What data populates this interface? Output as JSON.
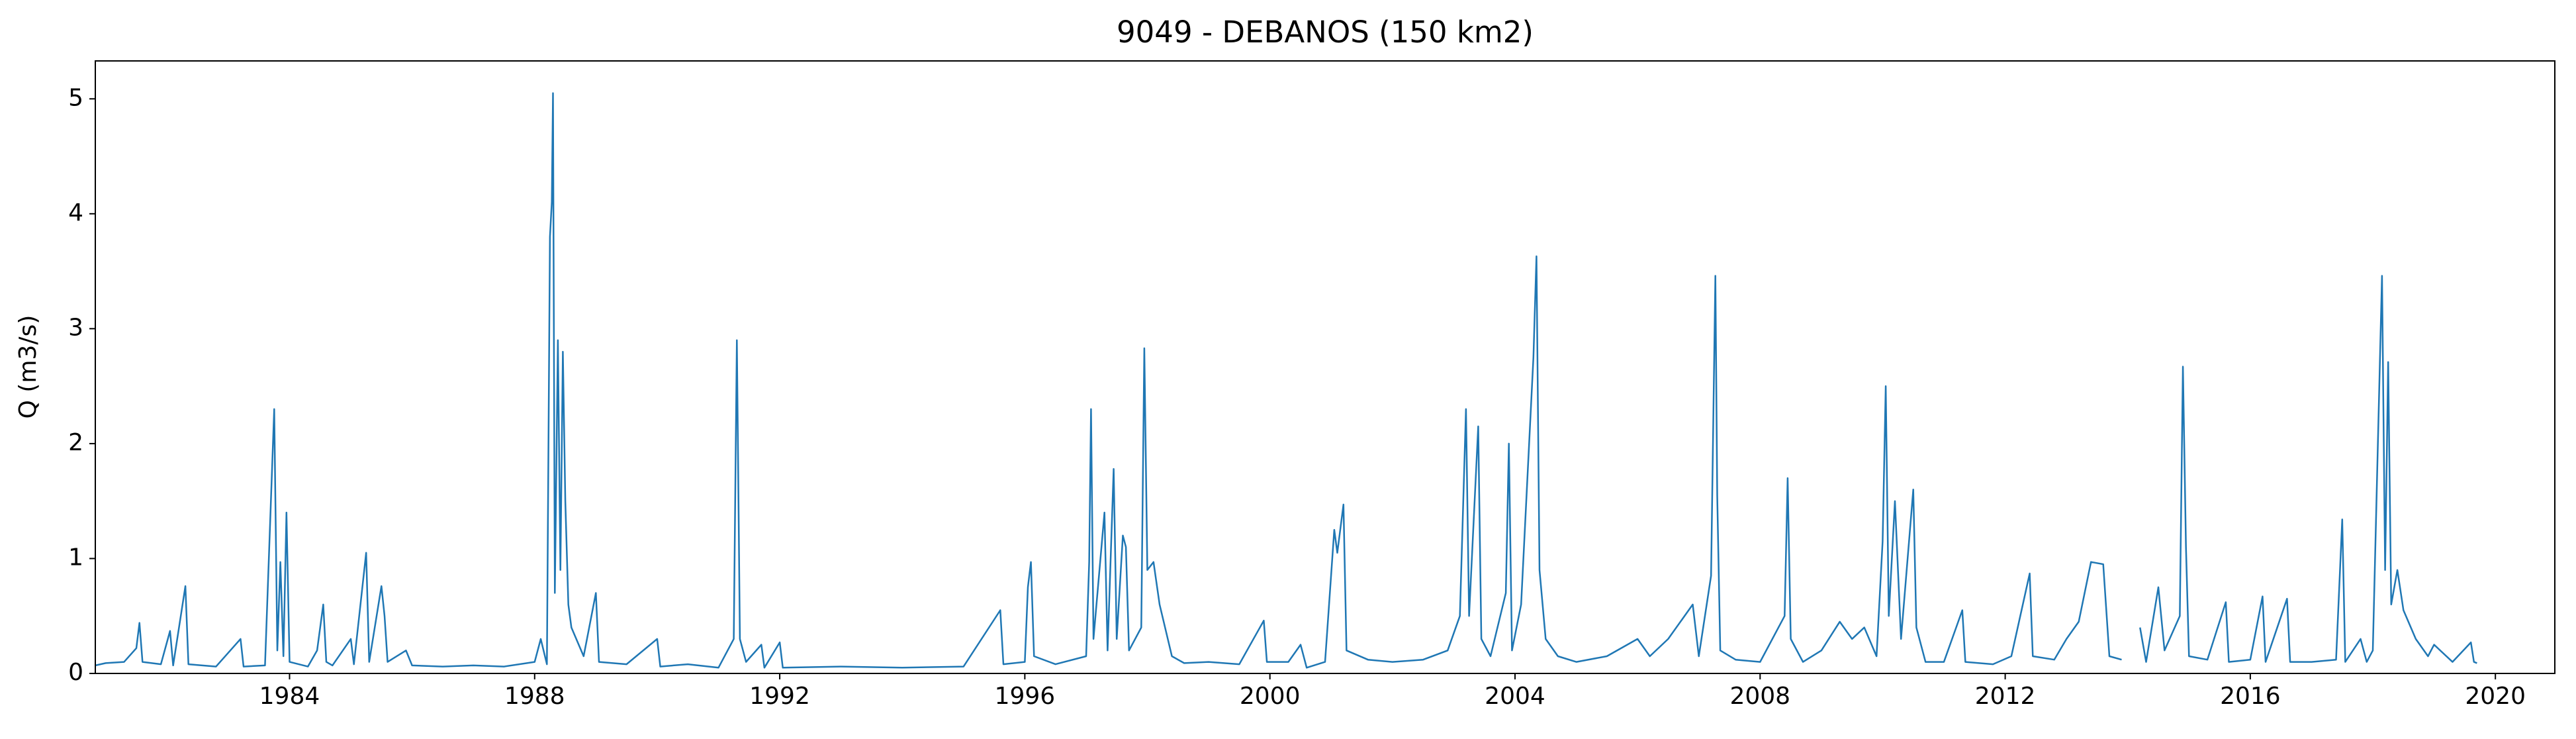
{
  "chart_data": {
    "type": "line",
    "title": "9049 - DEBANOS (150 km2)",
    "y_label": "Q (m3/s)",
    "x": [
      1980.83,
      1981.0,
      1981.3,
      1981.5,
      1981.55,
      1981.6,
      1981.9,
      1982.05,
      1982.1,
      1982.3,
      1982.35,
      1982.8,
      1983.2,
      1983.25,
      1983.6,
      1983.75,
      1983.8,
      1983.85,
      1983.9,
      1983.95,
      1984.0,
      1984.3,
      1984.45,
      1984.55,
      1984.6,
      1984.7,
      1985.0,
      1985.05,
      1985.25,
      1985.3,
      1985.5,
      1985.55,
      1985.6,
      1985.9,
      1986.0,
      1986.5,
      1987.0,
      1987.5,
      1988.0,
      1988.1,
      1988.2,
      1988.25,
      1988.28,
      1988.3,
      1988.33,
      1988.38,
      1988.42,
      1988.46,
      1988.5,
      1988.55,
      1988.6,
      1988.8,
      1989.0,
      1989.05,
      1989.5,
      1990.0,
      1990.05,
      1990.5,
      1991.0,
      1991.25,
      1991.3,
      1991.35,
      1991.45,
      1991.7,
      1991.75,
      1992.0,
      1992.05,
      1993.0,
      1994.0,
      1995.0,
      1995.6,
      1995.65,
      1996.0,
      1996.05,
      1996.1,
      1996.15,
      1996.5,
      1997.0,
      1997.05,
      1997.08,
      1997.12,
      1997.3,
      1997.35,
      1997.45,
      1997.5,
      1997.6,
      1997.65,
      1997.7,
      1997.9,
      1997.95,
      1998.0,
      1998.1,
      1998.2,
      1998.4,
      1998.6,
      1999.0,
      1999.5,
      1999.9,
      1999.95,
      2000.3,
      2000.5,
      2000.6,
      2000.9,
      2001.05,
      2001.1,
      2001.2,
      2001.25,
      2001.6,
      2002.0,
      2002.5,
      2002.9,
      2003.1,
      2003.2,
      2003.25,
      2003.4,
      2003.45,
      2003.6,
      2003.85,
      2003.9,
      2003.95,
      2004.1,
      2004.3,
      2004.35,
      2004.4,
      2004.5,
      2004.7,
      2005.0,
      2005.5,
      2006.0,
      2006.2,
      2006.5,
      2006.9,
      2007.0,
      2007.2,
      2007.27,
      2007.3,
      2007.35,
      2007.6,
      2008.0,
      2008.4,
      2008.45,
      2008.5,
      2008.7,
      2009.0,
      2009.3,
      2009.5,
      2009.7,
      2009.9,
      2010.0,
      2010.05,
      2010.1,
      2010.2,
      2010.3,
      2010.5,
      2010.55,
      2010.7,
      2011.0,
      2011.3,
      2011.35,
      2011.8,
      2012.1,
      2012.4,
      2012.45,
      2012.8,
      2013.0,
      2013.2,
      2013.4,
      2013.6,
      2013.7,
      2013.9,
      2014.0,
      2014.2,
      2014.3,
      2014.5,
      2014.6,
      2014.85,
      2014.9,
      2014.95,
      2015.0,
      2015.3,
      2015.6,
      2015.65,
      2016.0,
      2016.2,
      2016.25,
      2016.6,
      2016.65,
      2017.0,
      2017.4,
      2017.5,
      2017.55,
      2017.8,
      2017.9,
      2018.0,
      2018.15,
      2018.2,
      2018.25,
      2018.3,
      2018.4,
      2018.5,
      2018.7,
      2018.9,
      2019.0,
      2019.3,
      2019.6,
      2019.65,
      2019.7
    ],
    "series": [
      {
        "color": "#1f77b4",
        "values": [
          0.07,
          0.09,
          0.1,
          0.22,
          0.44,
          0.1,
          0.08,
          0.37,
          0.07,
          0.76,
          0.08,
          0.06,
          0.3,
          0.06,
          0.07,
          2.3,
          0.2,
          0.97,
          0.15,
          1.4,
          0.1,
          0.06,
          0.2,
          0.6,
          0.1,
          0.07,
          0.3,
          0.08,
          1.05,
          0.1,
          0.76,
          0.5,
          0.1,
          0.2,
          0.07,
          0.06,
          0.07,
          0.06,
          0.1,
          0.3,
          0.08,
          3.8,
          4.1,
          5.05,
          0.7,
          2.9,
          0.9,
          2.8,
          1.5,
          0.6,
          0.4,
          0.15,
          0.7,
          0.1,
          0.08,
          0.3,
          0.06,
          0.08,
          0.05,
          0.3,
          2.9,
          0.3,
          0.1,
          0.25,
          0.05,
          0.27,
          0.05,
          0.06,
          0.05,
          0.06,
          0.55,
          0.08,
          0.1,
          0.75,
          0.97,
          0.15,
          0.08,
          0.15,
          0.97,
          2.3,
          0.3,
          1.4,
          0.2,
          1.78,
          0.3,
          1.2,
          1.1,
          0.2,
          0.4,
          2.83,
          0.9,
          0.97,
          0.6,
          0.15,
          0.09,
          0.1,
          0.08,
          0.46,
          0.1,
          0.1,
          0.25,
          0.05,
          0.1,
          1.25,
          1.05,
          1.47,
          0.2,
          0.12,
          0.1,
          0.12,
          0.2,
          0.5,
          2.3,
          0.5,
          2.15,
          0.3,
          0.15,
          0.7,
          2.0,
          0.2,
          0.6,
          2.75,
          3.63,
          0.9,
          0.3,
          0.15,
          0.1,
          0.15,
          0.3,
          0.15,
          0.3,
          0.6,
          0.15,
          0.85,
          3.46,
          1.55,
          0.2,
          0.12,
          0.1,
          0.5,
          1.7,
          0.3,
          0.1,
          0.2,
          0.45,
          0.3,
          0.4,
          0.15,
          1.15,
          2.5,
          0.5,
          1.5,
          0.3,
          1.6,
          0.4,
          0.1,
          0.1,
          0.55,
          0.1,
          0.08,
          0.15,
          0.87,
          0.15,
          0.12,
          0.3,
          0.45,
          0.97,
          0.95,
          0.15,
          0.12,
          null,
          0.4,
          0.1,
          0.75,
          0.2,
          0.5,
          2.67,
          1.1,
          0.15,
          0.12,
          0.62,
          0.1,
          0.12,
          0.67,
          0.1,
          0.65,
          0.1,
          0.1,
          0.12,
          1.34,
          0.1,
          0.3,
          0.1,
          0.2,
          3.46,
          0.9,
          2.71,
          0.6,
          0.9,
          0.55,
          0.3,
          0.15,
          0.25,
          0.1,
          0.27,
          0.1,
          0.09
        ]
      }
    ],
    "xlim": [
      1980.83,
      2020.97
    ],
    "ylim": [
      0,
      5.33
    ],
    "xticks": [
      1984,
      1988,
      1992,
      1996,
      2000,
      2004,
      2008,
      2012,
      2016,
      2020
    ],
    "yticks": [
      0,
      1,
      2,
      3,
      4,
      5
    ]
  }
}
